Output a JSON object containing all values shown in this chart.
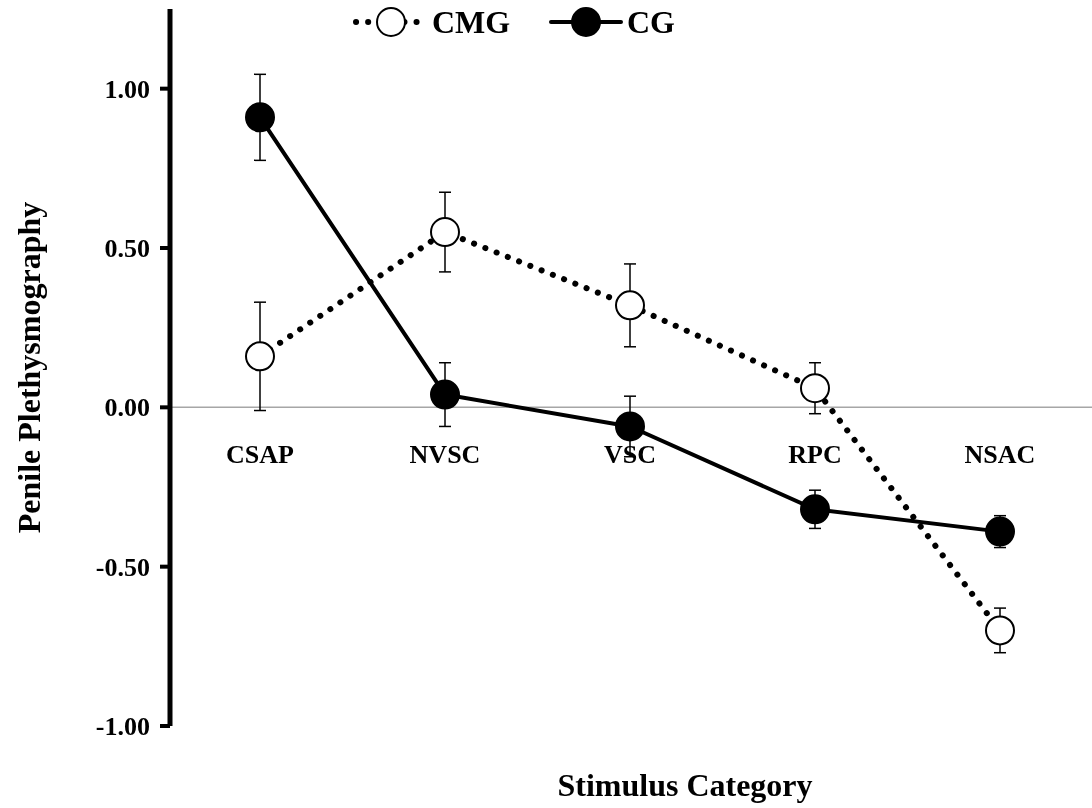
{
  "chart_data": {
    "type": "line",
    "xlabel": "Stimulus Category",
    "ylabel": "Penile Plethysmography",
    "categories": [
      "CSAP",
      "NVSC",
      "VSC",
      "RPC",
      "NSAC"
    ],
    "series": [
      {
        "name": "CMG",
        "color": "#000000",
        "line_style": "dotted",
        "values": [
          0.16,
          0.55,
          0.32,
          0.06,
          -0.7
        ],
        "errors": [
          0.17,
          0.125,
          0.13,
          0.08,
          0.07
        ]
      },
      {
        "name": "CG",
        "color": "#000000",
        "line_style": "solid",
        "values": [
          0.91,
          0.04,
          -0.06,
          -0.32,
          -0.39
        ],
        "errors": [
          0.135,
          0.1,
          0.095,
          0.06,
          0.05
        ]
      }
    ],
    "ylim": [
      -1,
      1.25
    ],
    "yticks": [
      {
        "value": -1,
        "label": "-1.00"
      },
      {
        "value": -0.5,
        "label": "-0.50"
      },
      {
        "value": 0,
        "label": "0.00"
      },
      {
        "value": 0.5,
        "label": "0.50"
      },
      {
        "value": 1,
        "label": "1.00"
      }
    ],
    "marker": "circle",
    "legend": "top",
    "grid": false
  }
}
